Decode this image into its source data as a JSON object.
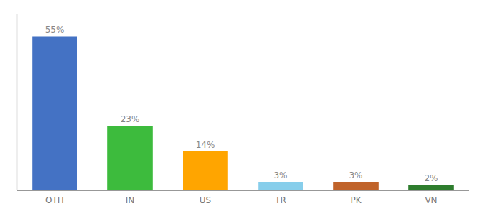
{
  "chart_data": {
    "type": "bar",
    "categories": [
      "OTH",
      "IN",
      "US",
      "TR",
      "PK",
      "VN"
    ],
    "values": [
      55,
      23,
      14,
      3,
      3,
      2
    ],
    "value_labels": [
      "55%",
      "23%",
      "14%",
      "3%",
      "3%",
      "2%"
    ],
    "colors": [
      "#4472C4",
      "#3DBB3D",
      "#FFA500",
      "#87CEEB",
      "#C0632A",
      "#2E7D2E"
    ],
    "ylim": [
      0,
      63
    ],
    "data_labels": true,
    "tick_labels": "x",
    "grid": false
  }
}
